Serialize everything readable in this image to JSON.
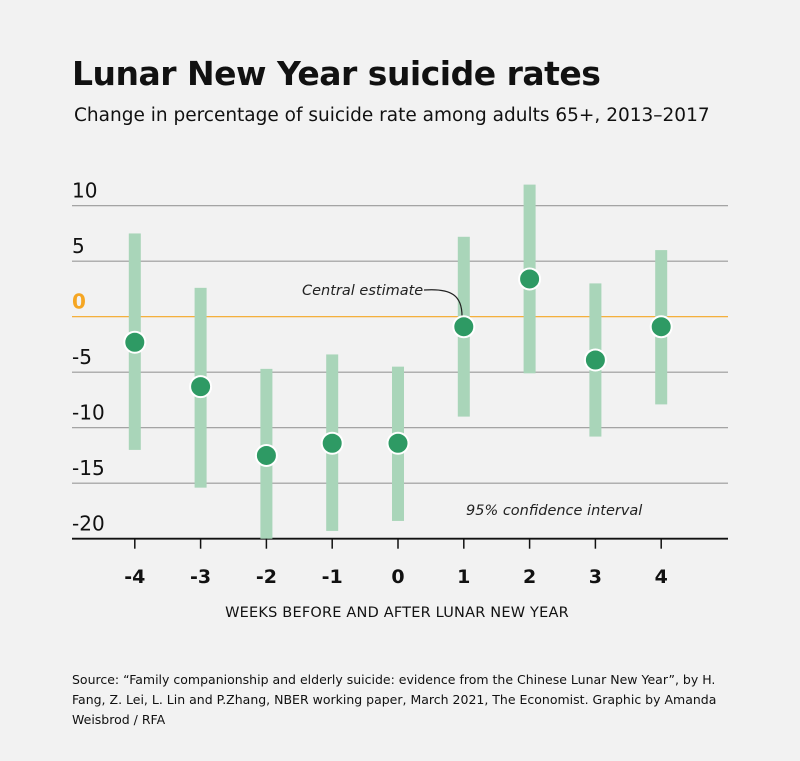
{
  "chart_data": {
    "type": "scatter",
    "title": "Lunar New Year suicide rates",
    "subtitle": "Change in percentage of suicide rate among adults 65+, 2013–2017",
    "xlabel": "WEEKS BEFORE AND AFTER LUNAR NEW YEAR",
    "ylabel": "",
    "categories": [
      "-4",
      "-3",
      "-2",
      "-1",
      "0",
      "1",
      "2",
      "3",
      "4"
    ],
    "x": [
      -4,
      -3,
      -2,
      -1,
      0,
      1,
      2,
      3,
      4
    ],
    "estimate": [
      -2.3,
      -6.3,
      -12.5,
      -11.4,
      -11.4,
      -0.9,
      3.4,
      -3.9,
      -0.9
    ],
    "ci_low": [
      -12.0,
      -15.4,
      -20.0,
      -19.3,
      -18.4,
      -9.0,
      -5.1,
      -10.8,
      -7.9
    ],
    "ci_high": [
      7.5,
      2.6,
      -4.7,
      -3.4,
      -4.5,
      7.2,
      11.9,
      3.0,
      6.0
    ],
    "yticks": [
      10,
      5,
      0,
      -5,
      -10,
      -15,
      -20
    ],
    "ylim": [
      -20,
      12
    ],
    "grid": true,
    "annotations": {
      "central": "Central estimate",
      "ci": "95% confidence interval"
    },
    "colors": {
      "estimate": "#2e9a64",
      "interval": "#a9d5b9",
      "zero_line": "#f5a623",
      "grid": "#999999",
      "background": "#f2f2f2"
    }
  },
  "source": "Source: “Family companionship and elderly suicide: evidence from the Chinese Lunar New Year”, by H. Fang, Z. Lei, L. Lin and P.Zhang, NBER working paper, March 2021, The Economist. Graphic by Amanda Weisbrod / RFA"
}
